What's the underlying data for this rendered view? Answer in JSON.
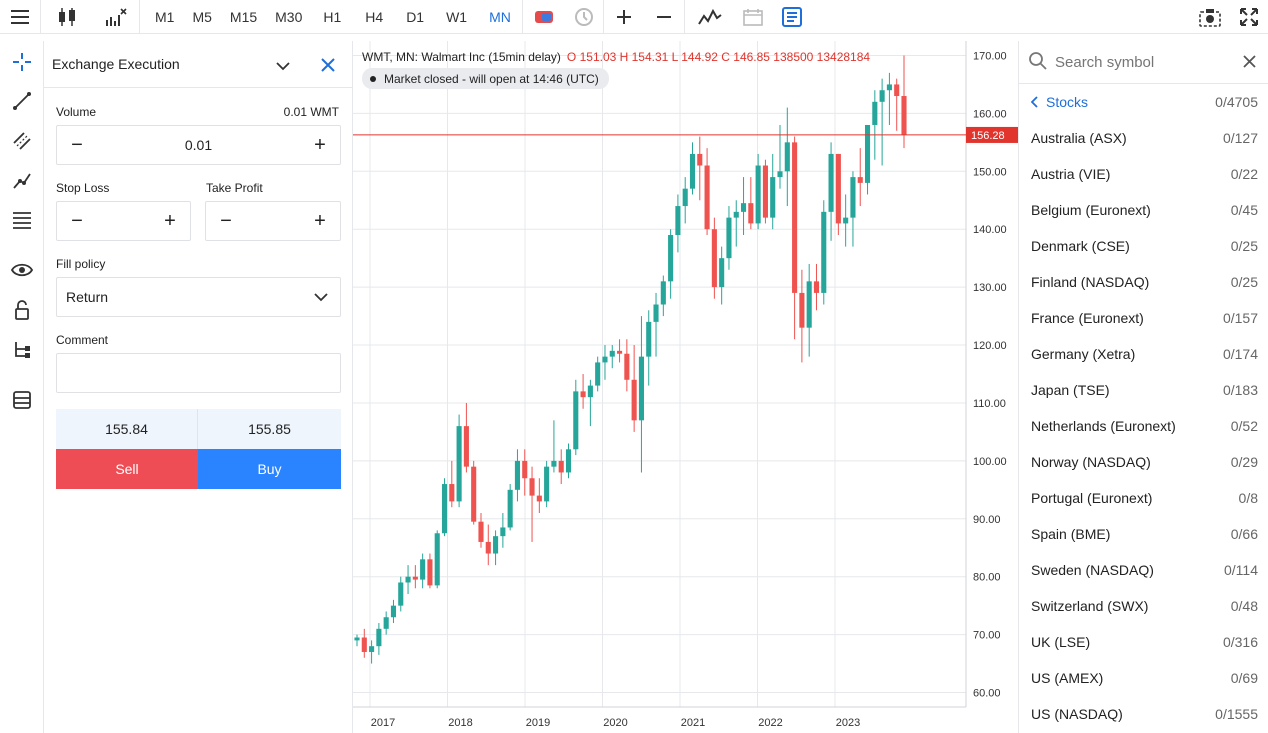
{
  "toolbar": {
    "timeframes": [
      "M1",
      "M5",
      "M15",
      "M30",
      "H1",
      "H4",
      "D1",
      "W1",
      "MN"
    ],
    "active_timeframe": "MN"
  },
  "order_panel": {
    "title": "Exchange Execution",
    "volume_label": "Volume",
    "volume_hint": "0.01 WMT",
    "volume_value": "0.01",
    "stop_loss_label": "Stop Loss",
    "take_profit_label": "Take Profit",
    "fill_policy_label": "Fill policy",
    "fill_policy_value": "Return",
    "comment_label": "Comment",
    "comment_value": "",
    "bid": "155.84",
    "ask": "155.85",
    "sell_label": "Sell",
    "buy_label": "Buy",
    "sell_color": "#ef4d55",
    "buy_color": "#2a83ff"
  },
  "chart": {
    "legend_symbol": "WMT, MN: Walmart Inc (15min delay)",
    "legend_ohlc": "O 151.03 H 154.31 L 144.92 C 146.85 138500 13428184",
    "status": "Market closed - will open at 14:46 (UTC)",
    "current_price": "156.28",
    "up_color": "#26a69a",
    "down_color": "#ef5350"
  },
  "chart_data": {
    "type": "candlestick",
    "price_axis_labels": [
      "170.00",
      "160.00",
      "150.00",
      "140.00",
      "130.00",
      "120.00",
      "110.00",
      "100.00",
      "90.00",
      "80.00",
      "70.00",
      "60.00"
    ],
    "price_axis_values": [
      170,
      160,
      150,
      140,
      130,
      120,
      110,
      100,
      90,
      80,
      70,
      60
    ],
    "time_axis_labels": [
      "2017",
      "2018",
      "2019",
      "2020",
      "2021",
      "2022",
      "2023"
    ],
    "ylim": [
      57.5,
      172.5
    ],
    "current_price_line": 156.28,
    "candles_ohlc": [
      [
        69,
        70,
        68,
        69.5
      ],
      [
        69.5,
        71,
        66,
        67
      ],
      [
        67,
        69,
        65,
        68
      ],
      [
        68,
        72,
        66.5,
        71
      ],
      [
        71,
        74,
        70,
        73
      ],
      [
        73,
        76,
        72,
        75
      ],
      [
        75,
        80,
        74,
        79
      ],
      [
        79,
        82,
        77,
        80
      ],
      [
        80,
        82,
        78,
        79.5
      ],
      [
        79.5,
        84,
        78,
        83
      ],
      [
        83,
        84,
        78,
        78.5
      ],
      [
        78.5,
        88,
        78,
        87.5
      ],
      [
        87.5,
        97,
        87,
        96
      ],
      [
        96,
        100,
        92,
        93
      ],
      [
        93,
        108,
        92,
        106
      ],
      [
        106,
        110,
        98,
        99
      ],
      [
        99,
        100,
        89,
        89.5
      ],
      [
        89.5,
        91,
        85,
        86
      ],
      [
        86,
        89,
        82,
        84
      ],
      [
        84,
        88,
        82,
        87
      ],
      [
        87,
        91,
        85,
        88.5
      ],
      [
        88.5,
        96,
        88,
        95
      ],
      [
        95,
        102,
        93,
        100
      ],
      [
        100,
        102,
        94,
        97
      ],
      [
        97,
        99,
        86,
        94
      ],
      [
        94,
        97,
        91,
        93
      ],
      [
        93,
        100,
        92,
        99
      ],
      [
        99,
        107,
        98,
        100
      ],
      [
        100,
        102,
        96,
        98
      ],
      [
        98,
        103,
        97,
        102
      ],
      [
        102,
        114,
        101,
        112
      ],
      [
        112,
        115,
        109,
        111
      ],
      [
        111,
        114,
        106,
        113
      ],
      [
        113,
        118,
        112,
        117
      ],
      [
        117,
        120,
        114,
        118
      ],
      [
        118,
        120,
        116,
        119
      ],
      [
        119,
        121,
        117,
        118.5
      ],
      [
        118.5,
        121,
        112,
        114
      ],
      [
        114,
        120,
        105,
        107
      ],
      [
        107,
        125,
        98,
        118
      ],
      [
        118,
        126,
        113,
        124
      ],
      [
        124,
        129,
        118,
        127
      ],
      [
        127,
        132,
        125,
        131
      ],
      [
        131,
        140,
        128,
        139
      ],
      [
        139,
        146,
        136,
        144
      ],
      [
        144,
        149,
        141,
        147
      ],
      [
        147,
        155,
        146,
        153
      ],
      [
        153,
        156,
        145,
        151
      ],
      [
        151,
        154,
        139,
        140
      ],
      [
        140,
        142,
        128,
        130
      ],
      [
        130,
        137,
        127,
        135
      ],
      [
        135,
        144,
        133,
        142
      ],
      [
        142,
        145,
        137,
        143
      ],
      [
        143,
        149,
        139,
        144.5
      ],
      [
        144.5,
        149,
        140,
        141
      ],
      [
        141,
        153,
        140,
        151
      ],
      [
        151,
        152,
        141,
        142
      ],
      [
        142,
        153,
        140,
        149
      ],
      [
        149,
        158,
        147,
        150
      ],
      [
        150,
        161,
        144,
        155
      ],
      [
        155,
        156,
        121,
        129
      ],
      [
        129,
        133,
        117,
        123
      ],
      [
        123,
        134,
        118,
        131
      ],
      [
        131,
        134,
        126,
        129
      ],
      [
        129,
        145,
        127,
        143
      ],
      [
        143,
        155,
        138,
        153
      ],
      [
        153,
        153,
        139,
        141
      ],
      [
        141,
        146,
        137,
        142
      ],
      [
        142,
        150,
        137,
        149
      ],
      [
        149,
        154,
        144,
        148
      ],
      [
        148,
        156,
        146,
        158
      ],
      [
        158,
        164,
        152,
        162
      ],
      [
        162,
        166,
        151,
        164
      ],
      [
        164,
        167,
        158,
        165
      ],
      [
        165,
        166,
        157,
        163
      ],
      [
        163,
        170,
        154,
        156.28
      ]
    ]
  },
  "symbols": {
    "search_placeholder": "Search symbol",
    "group_label": "Stocks",
    "group_count": "0/4705",
    "items": [
      {
        "name": "Australia (ASX)",
        "count": "0/127"
      },
      {
        "name": "Austria (VIE)",
        "count": "0/22"
      },
      {
        "name": "Belgium (Euronext)",
        "count": "0/45"
      },
      {
        "name": "Denmark (CSE)",
        "count": "0/25"
      },
      {
        "name": "Finland (NASDAQ)",
        "count": "0/25"
      },
      {
        "name": "France (Euronext)",
        "count": "0/157"
      },
      {
        "name": "Germany (Xetra)",
        "count": "0/174"
      },
      {
        "name": "Japan (TSE)",
        "count": "0/183"
      },
      {
        "name": "Netherlands (Euronext)",
        "count": "0/52"
      },
      {
        "name": "Norway (NASDAQ)",
        "count": "0/29"
      },
      {
        "name": "Portugal (Euronext)",
        "count": "0/8"
      },
      {
        "name": "Spain (BME)",
        "count": "0/66"
      },
      {
        "name": "Sweden (NASDAQ)",
        "count": "0/114"
      },
      {
        "name": "Switzerland (SWX)",
        "count": "0/48"
      },
      {
        "name": "UK (LSE)",
        "count": "0/316"
      },
      {
        "name": "US (AMEX)",
        "count": "0/69"
      },
      {
        "name": "US (NASDAQ)",
        "count": "0/1555"
      }
    ]
  }
}
